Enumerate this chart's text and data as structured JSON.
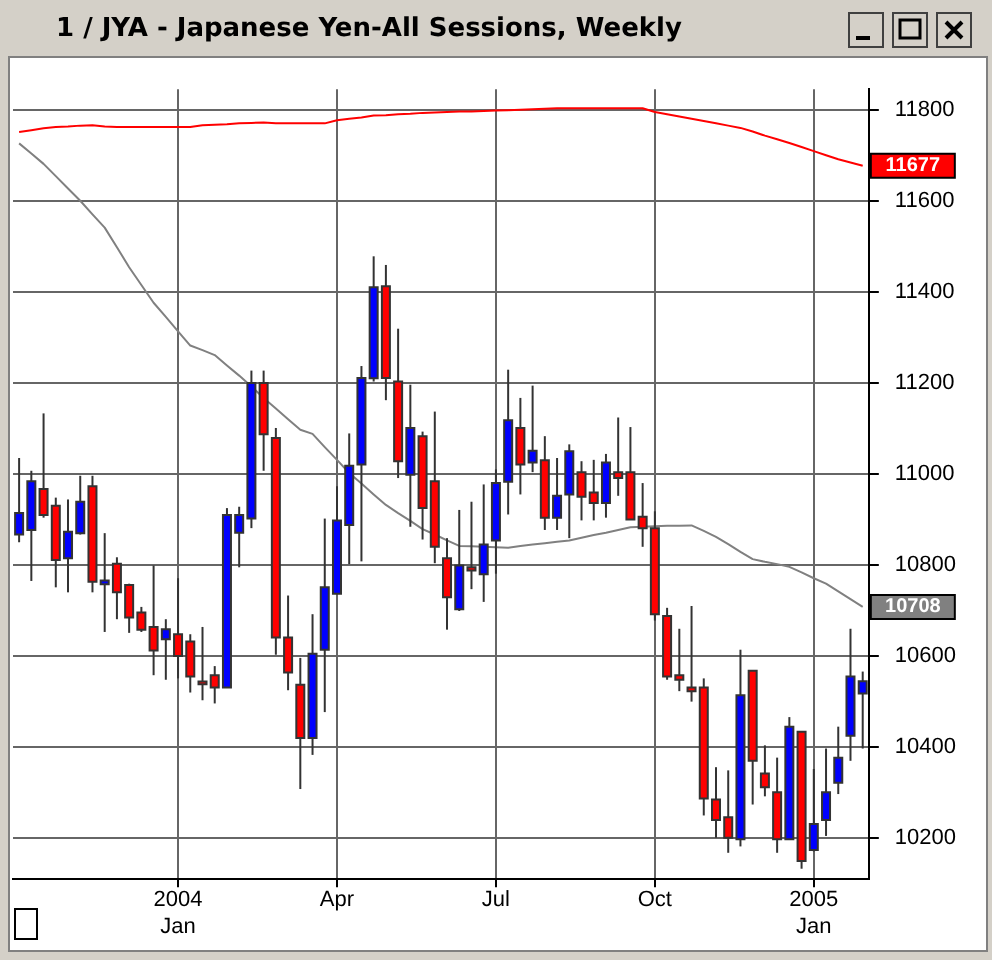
{
  "chart_data": {
    "type": "candlestick",
    "title": "1 / JYA - Japanese Yen-All Sessions, Weekly",
    "categories": [
      null,
      null,
      null,
      null,
      null,
      null,
      null,
      null,
      null,
      null,
      null,
      null,
      null,
      "2004\nJan",
      null,
      null,
      null,
      null,
      null,
      null,
      null,
      null,
      null,
      null,
      null,
      null,
      "Apr",
      null,
      null,
      null,
      null,
      null,
      null,
      null,
      null,
      null,
      null,
      null,
      null,
      "Jul",
      null,
      null,
      null,
      null,
      null,
      null,
      null,
      null,
      null,
      null,
      null,
      null,
      "Oct",
      null,
      null,
      null,
      null,
      null,
      null,
      null,
      null,
      null,
      null,
      null,
      null,
      "2005\nJan",
      null,
      null,
      null,
      null
    ],
    "ohlc": [
      [
        10867,
        11035,
        10850,
        10914
      ],
      [
        10877,
        11007,
        10765,
        10984
      ],
      [
        10967,
        11133,
        10904,
        10910
      ],
      [
        10930,
        10948,
        10751,
        10811
      ],
      [
        10815,
        10944,
        10740,
        10873
      ],
      [
        10870,
        10996,
        10867,
        10939
      ],
      [
        10973,
        10996,
        10740,
        10763
      ],
      [
        10758,
        10870,
        10653,
        10766
      ],
      [
        10803,
        10817,
        10681,
        10740
      ],
      [
        10756,
        10759,
        10651,
        10685
      ],
      [
        10696,
        10708,
        10653,
        10658
      ],
      [
        10664,
        10799,
        10558,
        10612
      ],
      [
        10637,
        10681,
        10548,
        10659
      ],
      [
        10648,
        10771,
        10551,
        10600
      ],
      [
        10632,
        10648,
        10520,
        10555
      ],
      [
        10544,
        10664,
        10503,
        10538
      ],
      [
        10558,
        10578,
        10496,
        10531
      ],
      [
        10531,
        10925,
        10531,
        10910
      ],
      [
        10871,
        10928,
        10795,
        10910
      ],
      [
        10902,
        11227,
        10881,
        11200
      ],
      [
        11200,
        11227,
        11007,
        11087
      ],
      [
        11079,
        11101,
        10603,
        10641
      ],
      [
        10641,
        10733,
        10525,
        10564
      ],
      [
        10537,
        10596,
        10308,
        10420
      ],
      [
        10420,
        10692,
        10383,
        10605
      ],
      [
        10614,
        10902,
        10477,
        10751
      ],
      [
        10737,
        10973,
        10737,
        10898
      ],
      [
        10888,
        11089,
        10802,
        11018
      ],
      [
        11021,
        11237,
        10808,
        11211
      ],
      [
        11210,
        11478,
        11203,
        11410
      ],
      [
        11412,
        11459,
        11162,
        11211
      ],
      [
        11203,
        11319,
        10991,
        11028
      ],
      [
        10998,
        11196,
        10884,
        11101
      ],
      [
        11083,
        11093,
        10856,
        10925
      ],
      [
        10984,
        11137,
        10804,
        10840
      ],
      [
        10815,
        10859,
        10658,
        10729
      ],
      [
        10703,
        10921,
        10699,
        10799
      ],
      [
        10795,
        10939,
        10747,
        10788
      ],
      [
        10780,
        10977,
        10719,
        10845
      ],
      [
        10854,
        11010,
        10781,
        10980
      ],
      [
        10983,
        11229,
        10911,
        11118
      ],
      [
        11101,
        11167,
        10955,
        11021
      ],
      [
        11025,
        11194,
        11004,
        11051
      ],
      [
        11030,
        11083,
        10877,
        10904
      ],
      [
        10904,
        11035,
        10877,
        10952
      ],
      [
        10955,
        11065,
        10859,
        11050
      ],
      [
        11004,
        11028,
        10898,
        10950
      ],
      [
        10959,
        11031,
        10898,
        10936
      ],
      [
        10936,
        11044,
        10904,
        11025
      ],
      [
        11004,
        11124,
        10952,
        10991
      ],
      [
        11004,
        11103,
        10900,
        10900
      ],
      [
        10906,
        10980,
        10840,
        10881
      ],
      [
        10881,
        10918,
        10678,
        10692
      ],
      [
        10688,
        10706,
        10548,
        10555
      ],
      [
        10558,
        10660,
        10523,
        10548
      ],
      [
        10531,
        10710,
        10500,
        10523
      ],
      [
        10531,
        10551,
        10250,
        10287
      ],
      [
        10285,
        10356,
        10201,
        10240
      ],
      [
        10246,
        10349,
        10168,
        10201
      ],
      [
        10198,
        10614,
        10182,
        10514
      ],
      [
        10568,
        10568,
        10274,
        10370
      ],
      [
        10342,
        10404,
        10292,
        10312
      ],
      [
        10301,
        10377,
        10168,
        10198
      ],
      [
        10198,
        10466,
        10198,
        10445
      ],
      [
        10434,
        10434,
        10133,
        10150
      ],
      [
        10174,
        10352,
        10171,
        10231
      ],
      [
        10240,
        10397,
        10205,
        10301
      ],
      [
        10322,
        10445,
        10297,
        10377
      ],
      [
        10425,
        10660,
        10370,
        10555
      ],
      [
        10518,
        10566,
        10397,
        10545
      ]
    ],
    "colors": [
      "#0000ff",
      "#0000ff",
      "#ff0000",
      "#ff0000",
      "#0000ff",
      "#0000ff",
      "#ff0000",
      "#0000ff",
      "#ff0000",
      "#ff0000",
      "#ff0000",
      "#ff0000",
      "#0000ff",
      "#ff0000",
      "#ff0000",
      "#ff0000",
      "#ff0000",
      "#0000ff",
      "#0000ff",
      "#0000ff",
      "#ff0000",
      "#ff0000",
      "#ff0000",
      "#ff0000",
      "#0000ff",
      "#0000ff",
      "#0000ff",
      "#0000ff",
      "#0000ff",
      "#0000ff",
      "#ff0000",
      "#ff0000",
      "#0000ff",
      "#ff0000",
      "#ff0000",
      "#ff0000",
      "#0000ff",
      "#ff0000",
      "#0000ff",
      "#0000ff",
      "#0000ff",
      "#ff0000",
      "#0000ff",
      "#ff0000",
      "#0000ff",
      "#0000ff",
      "#ff0000",
      "#ff0000",
      "#0000ff",
      "#ff0000",
      "#ff0000",
      "#ff0000",
      "#ff0000",
      "#ff0000",
      "#ff0000",
      "#ff0000",
      "#ff0000",
      "#ff0000",
      "#ff0000",
      "#0000ff",
      "#ff0000",
      "#ff0000",
      "#ff0000",
      "#0000ff",
      "#ff0000",
      "#0000ff",
      "#0000ff",
      "#0000ff",
      "#0000ff",
      "#0000ff"
    ],
    "series": [
      {
        "type": "line",
        "color": "#ff0000",
        "values": [
          11751,
          11755,
          11759,
          11762,
          11763,
          11765,
          11766,
          11763,
          11762,
          11762,
          11762,
          11762,
          11762,
          11762,
          11762,
          11766,
          11767,
          11768,
          11770,
          11771,
          11772,
          11770,
          11770,
          11770,
          11770,
          11770,
          11777,
          11780,
          11783,
          11787,
          11788,
          11790,
          11791,
          11793,
          11794,
          11795,
          11796,
          11796,
          11797,
          11798,
          11799,
          11800,
          11801,
          11802,
          11803,
          11803,
          11803,
          11803,
          11803,
          11803,
          11803,
          11803,
          11795,
          11790,
          11785,
          11780,
          11775,
          11770,
          11765,
          11760,
          11752,
          11743,
          11735,
          11727,
          11718,
          11709,
          11700,
          11691,
          11684,
          11677
        ],
        "value_labels": [
          null,
          null,
          null,
          null,
          null,
          null,
          null,
          null,
          null,
          null,
          null,
          null,
          null,
          null,
          null,
          null,
          null,
          null,
          null,
          null,
          null,
          null,
          null,
          null,
          null,
          null,
          null,
          null,
          null,
          null,
          null,
          null,
          null,
          null,
          null,
          null,
          null,
          null,
          null,
          null,
          null,
          null,
          null,
          null,
          null,
          null,
          null,
          null,
          null,
          null,
          null,
          null,
          null,
          null,
          null,
          null,
          null,
          null,
          null,
          null,
          null,
          null,
          null,
          null,
          null,
          null,
          null,
          null,
          null,
          "11677"
        ]
      },
      {
        "type": "line",
        "color": "#808080",
        "values": [
          11726,
          11704,
          11681,
          11654,
          11627,
          11600,
          11570,
          11541,
          11498,
          11454,
          11415,
          11376,
          11345,
          11313,
          11282,
          11272,
          11261,
          11238,
          11216,
          11192,
          11167,
          11144,
          11120,
          11097,
          11088,
          11059,
          11031,
          11002,
          10979,
          10955,
          10932,
          10914,
          10897,
          10879,
          10867,
          10854,
          10842,
          10841,
          10840,
          10839,
          10838,
          10842,
          10845,
          10848,
          10851,
          10854,
          10860,
          10866,
          10871,
          10877,
          10883,
          10884,
          10885,
          10886,
          10886,
          10887,
          10875,
          10862,
          10846,
          10829,
          10813,
          10807,
          10802,
          10796,
          10784,
          10771,
          10759,
          10742,
          10725,
          10708
        ],
        "value_labels": [
          null,
          null,
          null,
          null,
          null,
          null,
          null,
          null,
          null,
          null,
          null,
          null,
          null,
          null,
          null,
          null,
          null,
          null,
          null,
          null,
          null,
          null,
          null,
          null,
          null,
          null,
          null,
          null,
          null,
          null,
          null,
          null,
          null,
          null,
          null,
          null,
          null,
          null,
          null,
          null,
          null,
          null,
          null,
          null,
          null,
          null,
          null,
          null,
          null,
          null,
          null,
          null,
          null,
          null,
          null,
          null,
          null,
          null,
          null,
          null,
          null,
          null,
          null,
          null,
          null,
          null,
          null,
          null,
          null,
          "10708"
        ]
      }
    ],
    "ylim": [
      10110,
      11845
    ],
    "yticks": [
      10200,
      10400,
      10600,
      10800,
      11000,
      11200,
      11400,
      11600,
      11800
    ],
    "grid": true,
    "legend": false
  }
}
